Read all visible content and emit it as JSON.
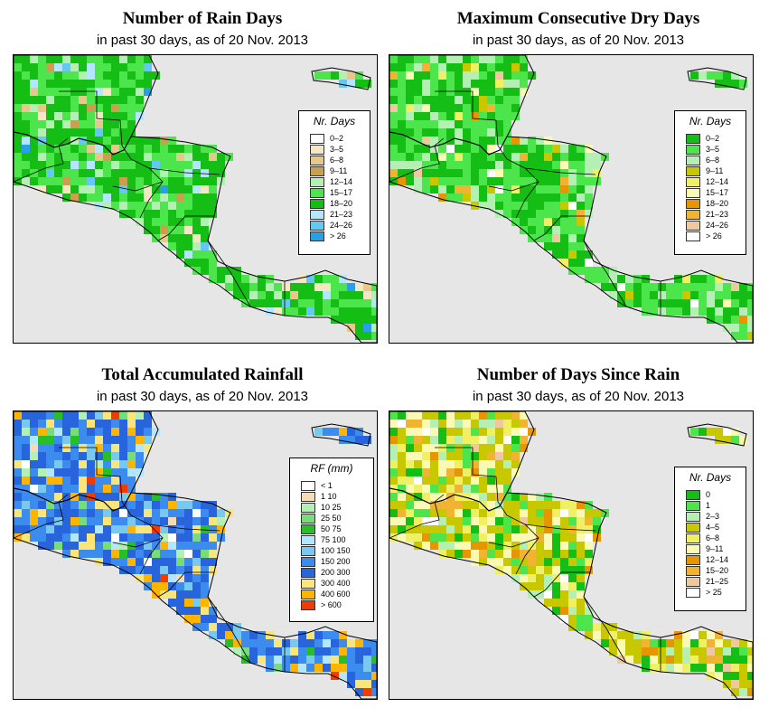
{
  "panels": [
    {
      "title": "Number of Rain Days",
      "subtitle": "in past 30 days, as of  20 Nov. 2013",
      "legend_title": "Nr. Days",
      "palette": [
        "#ffffff",
        "#f5e6c4",
        "#e6c88c",
        "#c8a050",
        "#b4f0b4",
        "#4ce64c",
        "#14be14",
        "#b4e6ff",
        "#64c8f0",
        "#28a0e6"
      ],
      "legend": [
        {
          "label": "0–2",
          "color": "#ffffff"
        },
        {
          "label": "3–5",
          "color": "#f5e6c4"
        },
        {
          "label": "6–8",
          "color": "#e6c88c"
        },
        {
          "label": "9–11",
          "color": "#c8a050"
        },
        {
          "label": "12–14",
          "color": "#b4f0b4"
        },
        {
          "label": "15–17",
          "color": "#4ce64c"
        },
        {
          "label": "18–20",
          "color": "#14be14"
        },
        {
          "label": "21–23",
          "color": "#b4e6ff"
        },
        {
          "label": "24–26",
          "color": "#64c8f0"
        },
        {
          "label": "> 26",
          "color": "#28a0e6"
        }
      ]
    },
    {
      "title": "Maximum Consecutive Dry Days",
      "subtitle": "in past 30 days, as of  20 Nov. 2013",
      "legend_title": "Nr. Days",
      "palette": [
        "#14be14",
        "#4ce64c",
        "#b4f0b4",
        "#c8c800",
        "#f0f064",
        "#fafab4",
        "#e69600",
        "#f0b432",
        "#f0c8a0",
        "#ffffff"
      ],
      "legend": [
        {
          "label": "0–2",
          "color": "#14be14"
        },
        {
          "label": "3–5",
          "color": "#4ce64c"
        },
        {
          "label": "6–8",
          "color": "#b4f0b4"
        },
        {
          "label": "9–11",
          "color": "#c8c800"
        },
        {
          "label": "12–14",
          "color": "#f0f064"
        },
        {
          "label": "15–17",
          "color": "#fafab4"
        },
        {
          "label": "18–20",
          "color": "#e69600"
        },
        {
          "label": "21–23",
          "color": "#f0b432"
        },
        {
          "label": "24–26",
          "color": "#f0c8a0"
        },
        {
          "label": "> 26",
          "color": "#ffffff"
        }
      ]
    },
    {
      "title": "Total Accumulated Rainfall",
      "subtitle": "in past 30 days, as of  20 Nov. 2013",
      "legend_title": "RF (mm)",
      "palette": [
        "#ffffff",
        "#f5dcb4",
        "#b4f0b4",
        "#78dc78",
        "#28be28",
        "#b4e6ff",
        "#78c8f0",
        "#3c8cf0",
        "#2864dc",
        "#fae678",
        "#ffb400",
        "#f03c00"
      ],
      "legend": [
        {
          "label": "< 1",
          "color": "#ffffff"
        },
        {
          "label": "1   10",
          "color": "#f5dcb4"
        },
        {
          "label": "10   25",
          "color": "#b4f0b4"
        },
        {
          "label": "25   50",
          "color": "#78dc78"
        },
        {
          "label": "50   75",
          "color": "#28be28"
        },
        {
          "label": "75   100",
          "color": "#b4e6ff"
        },
        {
          "label": "100   150",
          "color": "#78c8f0"
        },
        {
          "label": "150   200",
          "color": "#3c8cf0"
        },
        {
          "label": "200   300",
          "color": "#2864dc"
        },
        {
          "label": "300   400",
          "color": "#fae678"
        },
        {
          "label": "400   600",
          "color": "#ffb400"
        },
        {
          "label": "> 600",
          "color": "#f03c00"
        }
      ]
    },
    {
      "title": "Number of Days Since Rain",
      "subtitle": "in past 30 days, as of  20 Nov. 2013",
      "legend_title": "Nr. Days",
      "palette": [
        "#14be14",
        "#4ce64c",
        "#b4f0b4",
        "#c8c800",
        "#f0f064",
        "#fafab4",
        "#e69600",
        "#f0b432",
        "#f0c8a0",
        "#ffffff"
      ],
      "legend": [
        {
          "label": "0",
          "color": "#14be14"
        },
        {
          "label": "1",
          "color": "#4ce64c"
        },
        {
          "label": "2–3",
          "color": "#b4f0b4"
        },
        {
          "label": "4–5",
          "color": "#c8c800"
        },
        {
          "label": "6–8",
          "color": "#f0f064"
        },
        {
          "label": "9–11",
          "color": "#fafab4"
        },
        {
          "label": "12–14",
          "color": "#e69600"
        },
        {
          "label": "15–20",
          "color": "#f0b432"
        },
        {
          "label": "21–25",
          "color": "#f0c8a0"
        },
        {
          "label": "> 25",
          "color": "#ffffff"
        }
      ]
    }
  ],
  "colors": {
    "ocean": "#e6e6e6",
    "border": "#000000"
  }
}
